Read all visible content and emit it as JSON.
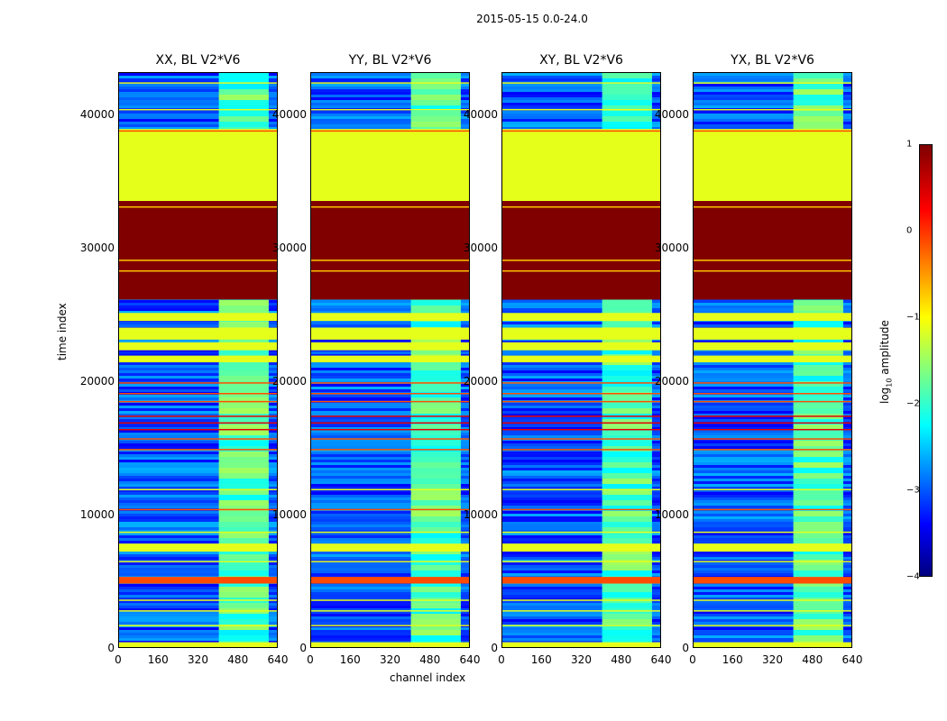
{
  "chart_data": {
    "type": "heatmap",
    "title": "2015-05-15 0.0-24.0",
    "xlabel": "channel index",
    "ylabel": "time index",
    "xlim": [
      0,
      640
    ],
    "ylim": [
      0,
      43200
    ],
    "x_ticks": [
      "0",
      "160",
      "320",
      "480",
      "640"
    ],
    "y_ticks": [
      "0",
      "10000",
      "20000",
      "30000",
      "40000"
    ],
    "panels": [
      {
        "title": "XX, BL V2*V6",
        "bright_channels": [
          400,
          600
        ]
      },
      {
        "title": "YY, BL V2*V6",
        "bright_channels": [
          400,
          600
        ]
      },
      {
        "title": "XY, BL V2*V6",
        "bright_channels": [
          400,
          600
        ]
      },
      {
        "title": "YX, BL V2*V6",
        "bright_channels": [
          400,
          600
        ]
      }
    ],
    "colorbar": {
      "label_main": "log",
      "label_sub": "10",
      "label_rest": " amplitude",
      "range": [
        -4,
        1
      ],
      "ticks": [
        "1",
        "0",
        "−1",
        "−2",
        "−3",
        "−4"
      ]
    },
    "bands": [
      {
        "from": 26200,
        "to": 33600,
        "value": 1
      },
      {
        "from": 33600,
        "to": 39000,
        "value": -1
      },
      {
        "from": 21500,
        "to": 22000,
        "value": -1
      },
      {
        "from": 22400,
        "to": 23000,
        "value": -1
      },
      {
        "from": 23200,
        "to": 24100,
        "value": -1
      },
      {
        "from": 24600,
        "to": 25200,
        "value": -1
      },
      {
        "from": 4900,
        "to": 5400,
        "value": 0
      },
      {
        "from": 7300,
        "to": 7900,
        "value": -1
      },
      {
        "from": 0,
        "to": 500,
        "value": -1
      }
    ],
    "lines": [
      {
        "at": 42500,
        "value": -1
      },
      {
        "at": 40500,
        "value": -1
      },
      {
        "at": 38900,
        "value": 0
      },
      {
        "at": 33200,
        "value": -0.6
      },
      {
        "at": 29200,
        "value": -0.6
      },
      {
        "at": 28400,
        "value": -0.6
      },
      {
        "at": 20000,
        "value": 0
      },
      {
        "at": 19200,
        "value": 0
      },
      {
        "at": 18600,
        "value": 0
      },
      {
        "at": 17500,
        "value": 0.5
      },
      {
        "at": 17000,
        "value": 0.5
      },
      {
        "at": 16500,
        "value": 0.5
      },
      {
        "at": 15800,
        "value": 0
      },
      {
        "at": 15000,
        "value": 0
      },
      {
        "at": 12000,
        "value": -1
      },
      {
        "at": 10500,
        "value": 0
      },
      {
        "at": 8800,
        "value": -1
      },
      {
        "at": 6600,
        "value": -1
      },
      {
        "at": 3700,
        "value": -1
      },
      {
        "at": 2900,
        "value": -1
      },
      {
        "at": 1800,
        "value": -1
      }
    ]
  }
}
